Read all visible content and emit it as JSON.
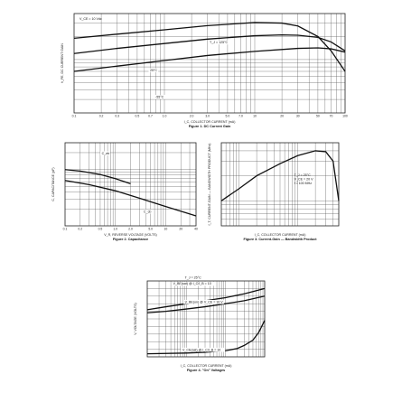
{
  "chart_data": [
    {
      "id": "fig1",
      "type": "line",
      "caption": "Figure 1. DC Current Gain",
      "xlabel": "I_C, COLLECTOR CURRENT (mA)",
      "ylabel": "h_FE, DC CURRENT GAIN",
      "xscale": "log",
      "yscale": "log",
      "xlim": [
        0.1,
        100
      ],
      "ylim": [
        20,
        400
      ],
      "xticks": [
        "0.1",
        "0.2",
        "0.3",
        "0.5",
        "0.7",
        "1.0",
        "2.0",
        "3.0",
        "5.0",
        "7.0",
        "10",
        "20",
        "30",
        "50",
        "70",
        "100"
      ],
      "conditions": "V_CE = 10 Vdc",
      "grid": true,
      "series": [
        {
          "name": "T_J = 125°C",
          "x": [
            0.1,
            0.3,
            1,
            3,
            10,
            20,
            30,
            50,
            70,
            100
          ],
          "y": [
            190,
            215,
            245,
            278,
            305,
            300,
            275,
            200,
            130,
            70
          ]
        },
        {
          "name": "25°C",
          "x": [
            0.1,
            0.3,
            1,
            3,
            10,
            20,
            30,
            50,
            70,
            100
          ],
          "y": [
            120,
            140,
            162,
            185,
            205,
            210,
            208,
            195,
            170,
            130
          ]
        },
        {
          "name": "-55°C",
          "x": [
            0.1,
            0.3,
            1,
            3,
            10,
            30,
            50,
            70,
            100
          ],
          "y": [
            70,
            82,
            97,
            113,
            128,
            140,
            142,
            138,
            125
          ]
        }
      ]
    },
    {
      "id": "fig2",
      "type": "line",
      "caption": "Figure 2. Capacitance",
      "xlabel": "V_R, REVERSE VOLTAGE (VOLTS)",
      "ylabel": "C, CAPACITANCE (pF)",
      "xscale": "log",
      "yscale": "log",
      "xlim": [
        0.1,
        40
      ],
      "ylim": [
        1,
        30
      ],
      "xticks": [
        "0.1",
        "0.2",
        "0.5",
        "1.0",
        "2.0",
        "5.0",
        "10",
        "20",
        "40"
      ],
      "grid": true,
      "series": [
        {
          "name": "C_eb",
          "x": [
            0.1,
            0.2,
            0.5,
            1,
            2
          ],
          "y": [
            10,
            9.4,
            8.2,
            6.9,
            5.6
          ]
        },
        {
          "name": "C_cb",
          "x": [
            0.1,
            0.3,
            1,
            3,
            10,
            40
          ],
          "y": [
            6.4,
            5.4,
            4.2,
            3.1,
            2.2,
            1.5
          ]
        }
      ]
    },
    {
      "id": "fig3",
      "type": "line",
      "caption": "Figure 3. Current-Gain — Bandwidth Product",
      "xlabel": "I_C, COLLECTOR CURRENT (mA)",
      "ylabel": "f_T, CURRENT-GAIN — BANDWIDTH PRODUCT (MHz)",
      "xscale": "log",
      "yscale": "log",
      "xlim": [
        0.5,
        50
      ],
      "ylim": [
        50,
        500
      ],
      "conditions": [
        "T_J = 25°C",
        "V_CE = 20 V",
        "f = 100 MHz"
      ],
      "grid": true,
      "series": [
        {
          "name": "f_T",
          "x": [
            0.5,
            1,
            2,
            5,
            10,
            20,
            30,
            40,
            50
          ],
          "y": [
            100,
            140,
            200,
            280,
            350,
            400,
            390,
            300,
            100
          ]
        }
      ]
    },
    {
      "id": "fig4",
      "type": "line",
      "caption": "Figure 4. \"On\" Voltages",
      "xlabel": "I_C, COLLECTOR CURRENT (mA)",
      "ylabel": "V, VOLTAGE (VOLTS)",
      "xscale": "log",
      "xlim": [
        0.1,
        100
      ],
      "ylim": [
        0,
        1.0
      ],
      "conditions": "T_J = 25°C",
      "grid": true,
      "series": [
        {
          "name": "V_BE(sat) @ I_C/I_B = 10",
          "x": [
            0.1,
            0.3,
            1,
            3,
            10,
            30,
            100
          ],
          "y": [
            0.62,
            0.66,
            0.7,
            0.74,
            0.78,
            0.83,
            0.9
          ]
        },
        {
          "name": "V_BE(on) @ V_CE = 10 V",
          "x": [
            0.1,
            0.3,
            1,
            3,
            10,
            30,
            100
          ],
          "y": [
            0.58,
            0.6,
            0.63,
            0.66,
            0.7,
            0.74,
            0.8
          ]
        },
        {
          "name": "V_CE(sat) @ I_C/I_B = 10",
          "x": [
            0.1,
            1,
            3,
            10,
            20,
            30,
            50,
            70,
            100
          ],
          "y": [
            0.04,
            0.05,
            0.06,
            0.08,
            0.11,
            0.15,
            0.22,
            0.32,
            0.48
          ]
        }
      ]
    }
  ]
}
